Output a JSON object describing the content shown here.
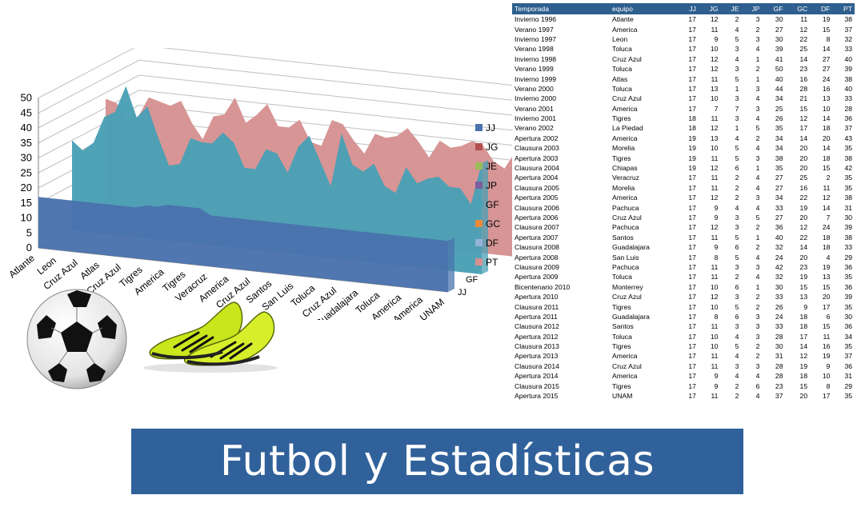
{
  "banner": {
    "title": "Futbol y Estadísticas"
  },
  "table": {
    "headers": [
      "Temporada",
      "equipo",
      "JJ",
      "JG",
      "JE",
      "JP",
      "GF",
      "GC",
      "DF",
      "PT"
    ],
    "rows": [
      [
        "Invierno 1996",
        "Atlante",
        "17",
        "12",
        "2",
        "3",
        "30",
        "11",
        "19",
        "38"
      ],
      [
        "Verano 1997",
        "America",
        "17",
        "11",
        "4",
        "2",
        "27",
        "12",
        "15",
        "37"
      ],
      [
        "Invierno 1997",
        "Leon",
        "17",
        "9",
        "5",
        "3",
        "30",
        "22",
        "8",
        "32"
      ],
      [
        "Verano 1998",
        "Toluca",
        "17",
        "10",
        "3",
        "4",
        "39",
        "25",
        "14",
        "33"
      ],
      [
        "Invierno 1998",
        "Cruz Azul",
        "17",
        "12",
        "4",
        "1",
        "41",
        "14",
        "27",
        "40"
      ],
      [
        "Verano 1999",
        "Toluca",
        "17",
        "12",
        "3",
        "2",
        "50",
        "23",
        "27",
        "39"
      ],
      [
        "Invierno 1999",
        "Atlas",
        "17",
        "11",
        "5",
        "1",
        "40",
        "16",
        "24",
        "38"
      ],
      [
        "Verano 2000",
        "Toluca",
        "17",
        "13",
        "1",
        "3",
        "44",
        "28",
        "16",
        "40"
      ],
      [
        "Invierno 2000",
        "Cruz Azul",
        "17",
        "10",
        "3",
        "4",
        "34",
        "21",
        "13",
        "33"
      ],
      [
        "Verano 2001",
        "America",
        "17",
        "7",
        "7",
        "3",
        "25",
        "15",
        "10",
        "28"
      ],
      [
        "Invierno 2001",
        "Tigres",
        "18",
        "11",
        "3",
        "4",
        "26",
        "12",
        "14",
        "36"
      ],
      [
        "Verano 2002",
        "La Piedad",
        "18",
        "12",
        "1",
        "5",
        "35",
        "17",
        "18",
        "37"
      ],
      [
        "Apertura 2002",
        "America",
        "19",
        "13",
        "4",
        "2",
        "34",
        "14",
        "20",
        "43"
      ],
      [
        "Clausura 2003",
        "Morelia",
        "19",
        "10",
        "5",
        "4",
        "34",
        "20",
        "14",
        "35"
      ],
      [
        "Apertura 2003",
        "Tigres",
        "19",
        "11",
        "5",
        "3",
        "38",
        "20",
        "18",
        "38"
      ],
      [
        "Clausura 2004",
        "Chiapas",
        "19",
        "12",
        "6",
        "1",
        "35",
        "20",
        "15",
        "42"
      ],
      [
        "Apertura 2004",
        "Veracruz",
        "17",
        "11",
        "2",
        "4",
        "27",
        "25",
        "2",
        "35"
      ],
      [
        "Clausura 2005",
        "Morelia",
        "17",
        "11",
        "2",
        "4",
        "27",
        "16",
        "11",
        "35"
      ],
      [
        "Apertura 2005",
        "America",
        "17",
        "12",
        "2",
        "3",
        "34",
        "22",
        "12",
        "38"
      ],
      [
        "Clausura 2006",
        "Pachuca",
        "17",
        "9",
        "4",
        "4",
        "33",
        "19",
        "14",
        "31"
      ],
      [
        "Apertura 2006",
        "Cruz Azul",
        "17",
        "9",
        "3",
        "5",
        "27",
        "20",
        "7",
        "30"
      ],
      [
        "Clausura 2007",
        "Pachuca",
        "17",
        "12",
        "3",
        "2",
        "36",
        "12",
        "24",
        "39"
      ],
      [
        "Apertura 2007",
        "Santos",
        "17",
        "11",
        "5",
        "1",
        "40",
        "22",
        "18",
        "38"
      ],
      [
        "Clausura 2008",
        "Guadalajara",
        "17",
        "9",
        "6",
        "2",
        "32",
        "14",
        "18",
        "33"
      ],
      [
        "Apertura 2008",
        "San Luis",
        "17",
        "8",
        "5",
        "4",
        "24",
        "20",
        "4",
        "29"
      ],
      [
        "Clausura 2009",
        "Pachuca",
        "17",
        "11",
        "3",
        "3",
        "42",
        "23",
        "19",
        "36"
      ],
      [
        "Apertura 2009",
        "Toluca",
        "17",
        "11",
        "2",
        "4",
        "32",
        "19",
        "13",
        "35"
      ],
      [
        "Bicentenario 2010",
        "Monterrey",
        "17",
        "10",
        "6",
        "1",
        "30",
        "15",
        "15",
        "36"
      ],
      [
        "Apertura 2010",
        "Cruz Azul",
        "17",
        "12",
        "3",
        "2",
        "33",
        "13",
        "20",
        "39"
      ],
      [
        "Clausura 2011",
        "Tigres",
        "17",
        "10",
        "5",
        "2",
        "26",
        "9",
        "17",
        "35"
      ],
      [
        "Apertura 2011",
        "Guadalajara",
        "17",
        "8",
        "6",
        "3",
        "24",
        "18",
        "6",
        "30"
      ],
      [
        "Clausura 2012",
        "Santos",
        "17",
        "11",
        "3",
        "3",
        "33",
        "18",
        "15",
        "36"
      ],
      [
        "Apertura 2012",
        "Toluca",
        "17",
        "10",
        "4",
        "3",
        "28",
        "17",
        "11",
        "34"
      ],
      [
        "Clausura 2013",
        "Tigres",
        "17",
        "10",
        "5",
        "2",
        "30",
        "14",
        "16",
        "35"
      ],
      [
        "Apertura 2013",
        "America",
        "17",
        "11",
        "4",
        "2",
        "31",
        "12",
        "19",
        "37"
      ],
      [
        "Clausura 2014",
        "Cruz Azul",
        "17",
        "11",
        "3",
        "3",
        "28",
        "19",
        "9",
        "36"
      ],
      [
        "Apertura 2014",
        "America",
        "17",
        "9",
        "4",
        "4",
        "28",
        "18",
        "10",
        "31"
      ],
      [
        "Clausura 2015",
        "Tigres",
        "17",
        "9",
        "2",
        "6",
        "23",
        "15",
        "8",
        "29"
      ],
      [
        "Apertura 2015",
        "UNAM",
        "17",
        "11",
        "2",
        "4",
        "37",
        "20",
        "17",
        "35"
      ]
    ]
  },
  "chart_data": {
    "type": "area",
    "categories": [
      "Atlante",
      "America",
      "Leon",
      "Toluca",
      "Cruz Azul",
      "Toluca",
      "Atlas",
      "Toluca",
      "Cruz Azul",
      "America",
      "Tigres",
      "La Piedad",
      "America",
      "Morelia",
      "Tigres",
      "Chiapas",
      "Veracruz",
      "Morelia",
      "America",
      "Pachuca",
      "Cruz Azul",
      "Pachuca",
      "Santos",
      "Guadalajara",
      "San Luis",
      "Pachuca",
      "Toluca",
      "Monterrey",
      "Cruz Azul",
      "Tigres",
      "Guadalajara",
      "Santos",
      "Toluca",
      "Tigres",
      "America",
      "Cruz Azul",
      "America",
      "Tigres",
      "UNAM"
    ],
    "visible_category_labels": [
      "Atlante",
      "Leon",
      "Cruz Azul",
      "Atlas",
      "Cruz Azul",
      "Tigres",
      "America",
      "Tigres",
      "Veracruz",
      "America",
      "Cruz Azul",
      "Santos",
      "San Luis",
      "Toluca",
      "Cruz Azul",
      "Guadalajara",
      "Toluca",
      "America",
      "America",
      "UNAM"
    ],
    "ylim": [
      0,
      50
    ],
    "yticks": [
      "0",
      "5",
      "10",
      "15",
      "20",
      "25",
      "30",
      "35",
      "40",
      "45",
      "50"
    ],
    "depth_axis_labels": [
      "JJ",
      "GF"
    ],
    "legend": {
      "placement": "right",
      "entries": [
        "JJ",
        "JG",
        "JE",
        "JP",
        "GF",
        "GC",
        "DF",
        "PT"
      ]
    },
    "colors": {
      "JJ": "#4a73ad",
      "JG": "#b3504d",
      "JE": "#9bbb59",
      "JP": "#7b5f9e",
      "GF": "#4aa0b5",
      "GC": "#e8893a",
      "DF": "#95b3d7",
      "PT": "#d69292"
    },
    "series": [
      {
        "name": "JJ",
        "values": [
          17,
          17,
          17,
          17,
          17,
          17,
          17,
          17,
          17,
          17,
          18,
          18,
          19,
          19,
          19,
          19,
          17,
          17,
          17,
          17,
          17,
          17,
          17,
          17,
          17,
          17,
          17,
          17,
          17,
          17,
          17,
          17,
          17,
          17,
          17,
          17,
          17,
          17,
          17
        ]
      },
      {
        "name": "GF",
        "values": [
          30,
          27,
          30,
          39,
          41,
          50,
          40,
          44,
          34,
          25,
          26,
          35,
          34,
          34,
          38,
          35,
          27,
          27,
          34,
          33,
          27,
          36,
          40,
          32,
          24,
          42,
          32,
          30,
          33,
          26,
          24,
          33,
          28,
          30,
          31,
          28,
          28,
          23,
          37
        ]
      },
      {
        "name": "PT",
        "values": [
          38,
          37,
          32,
          33,
          40,
          39,
          38,
          40,
          33,
          28,
          36,
          37,
          43,
          35,
          38,
          42,
          35,
          35,
          38,
          31,
          30,
          39,
          38,
          33,
          29,
          36,
          35,
          36,
          39,
          35,
          30,
          36,
          34,
          35,
          37,
          36,
          31,
          29,
          35
        ]
      }
    ]
  }
}
